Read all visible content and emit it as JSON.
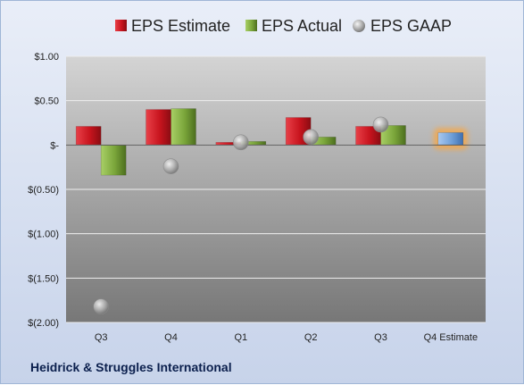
{
  "company_name": "Heidrick & Struggles International",
  "chart_data": {
    "type": "bar",
    "title": "",
    "xlabel": "",
    "ylabel": "",
    "categories": [
      "Q3",
      "Q4",
      "Q1",
      "Q2",
      "Q3",
      "Q4 Estimate"
    ],
    "ylim": [
      -2.0,
      1.0
    ],
    "yticks": [
      1.0,
      0.5,
      0.0,
      -0.5,
      -1.0,
      -1.5,
      -2.0
    ],
    "ytick_labels": [
      "$1.00",
      "$0.50",
      "$-",
      "$(0.50)",
      "$(1.00)",
      "$(1.50)",
      "$(2.00)"
    ],
    "grid": true,
    "legend_position": "top",
    "series": [
      {
        "name": "EPS Estimate",
        "type": "bar",
        "color": "#d0202a",
        "values": [
          0.21,
          0.4,
          0.03,
          0.31,
          0.21,
          null
        ]
      },
      {
        "name": "EPS Actual",
        "type": "bar",
        "color": "#7ea83c",
        "values": [
          -0.34,
          0.41,
          0.04,
          0.09,
          0.22,
          null
        ]
      },
      {
        "name": "EPS GAAP",
        "type": "marker",
        "color": "#a8a8a8",
        "values": [
          -1.82,
          -0.24,
          0.03,
          0.09,
          0.23,
          null
        ]
      }
    ],
    "estimate": {
      "category_index": 5,
      "value": 0.14,
      "color": "#6f9fd8",
      "highlight": "#f5a74a"
    }
  }
}
